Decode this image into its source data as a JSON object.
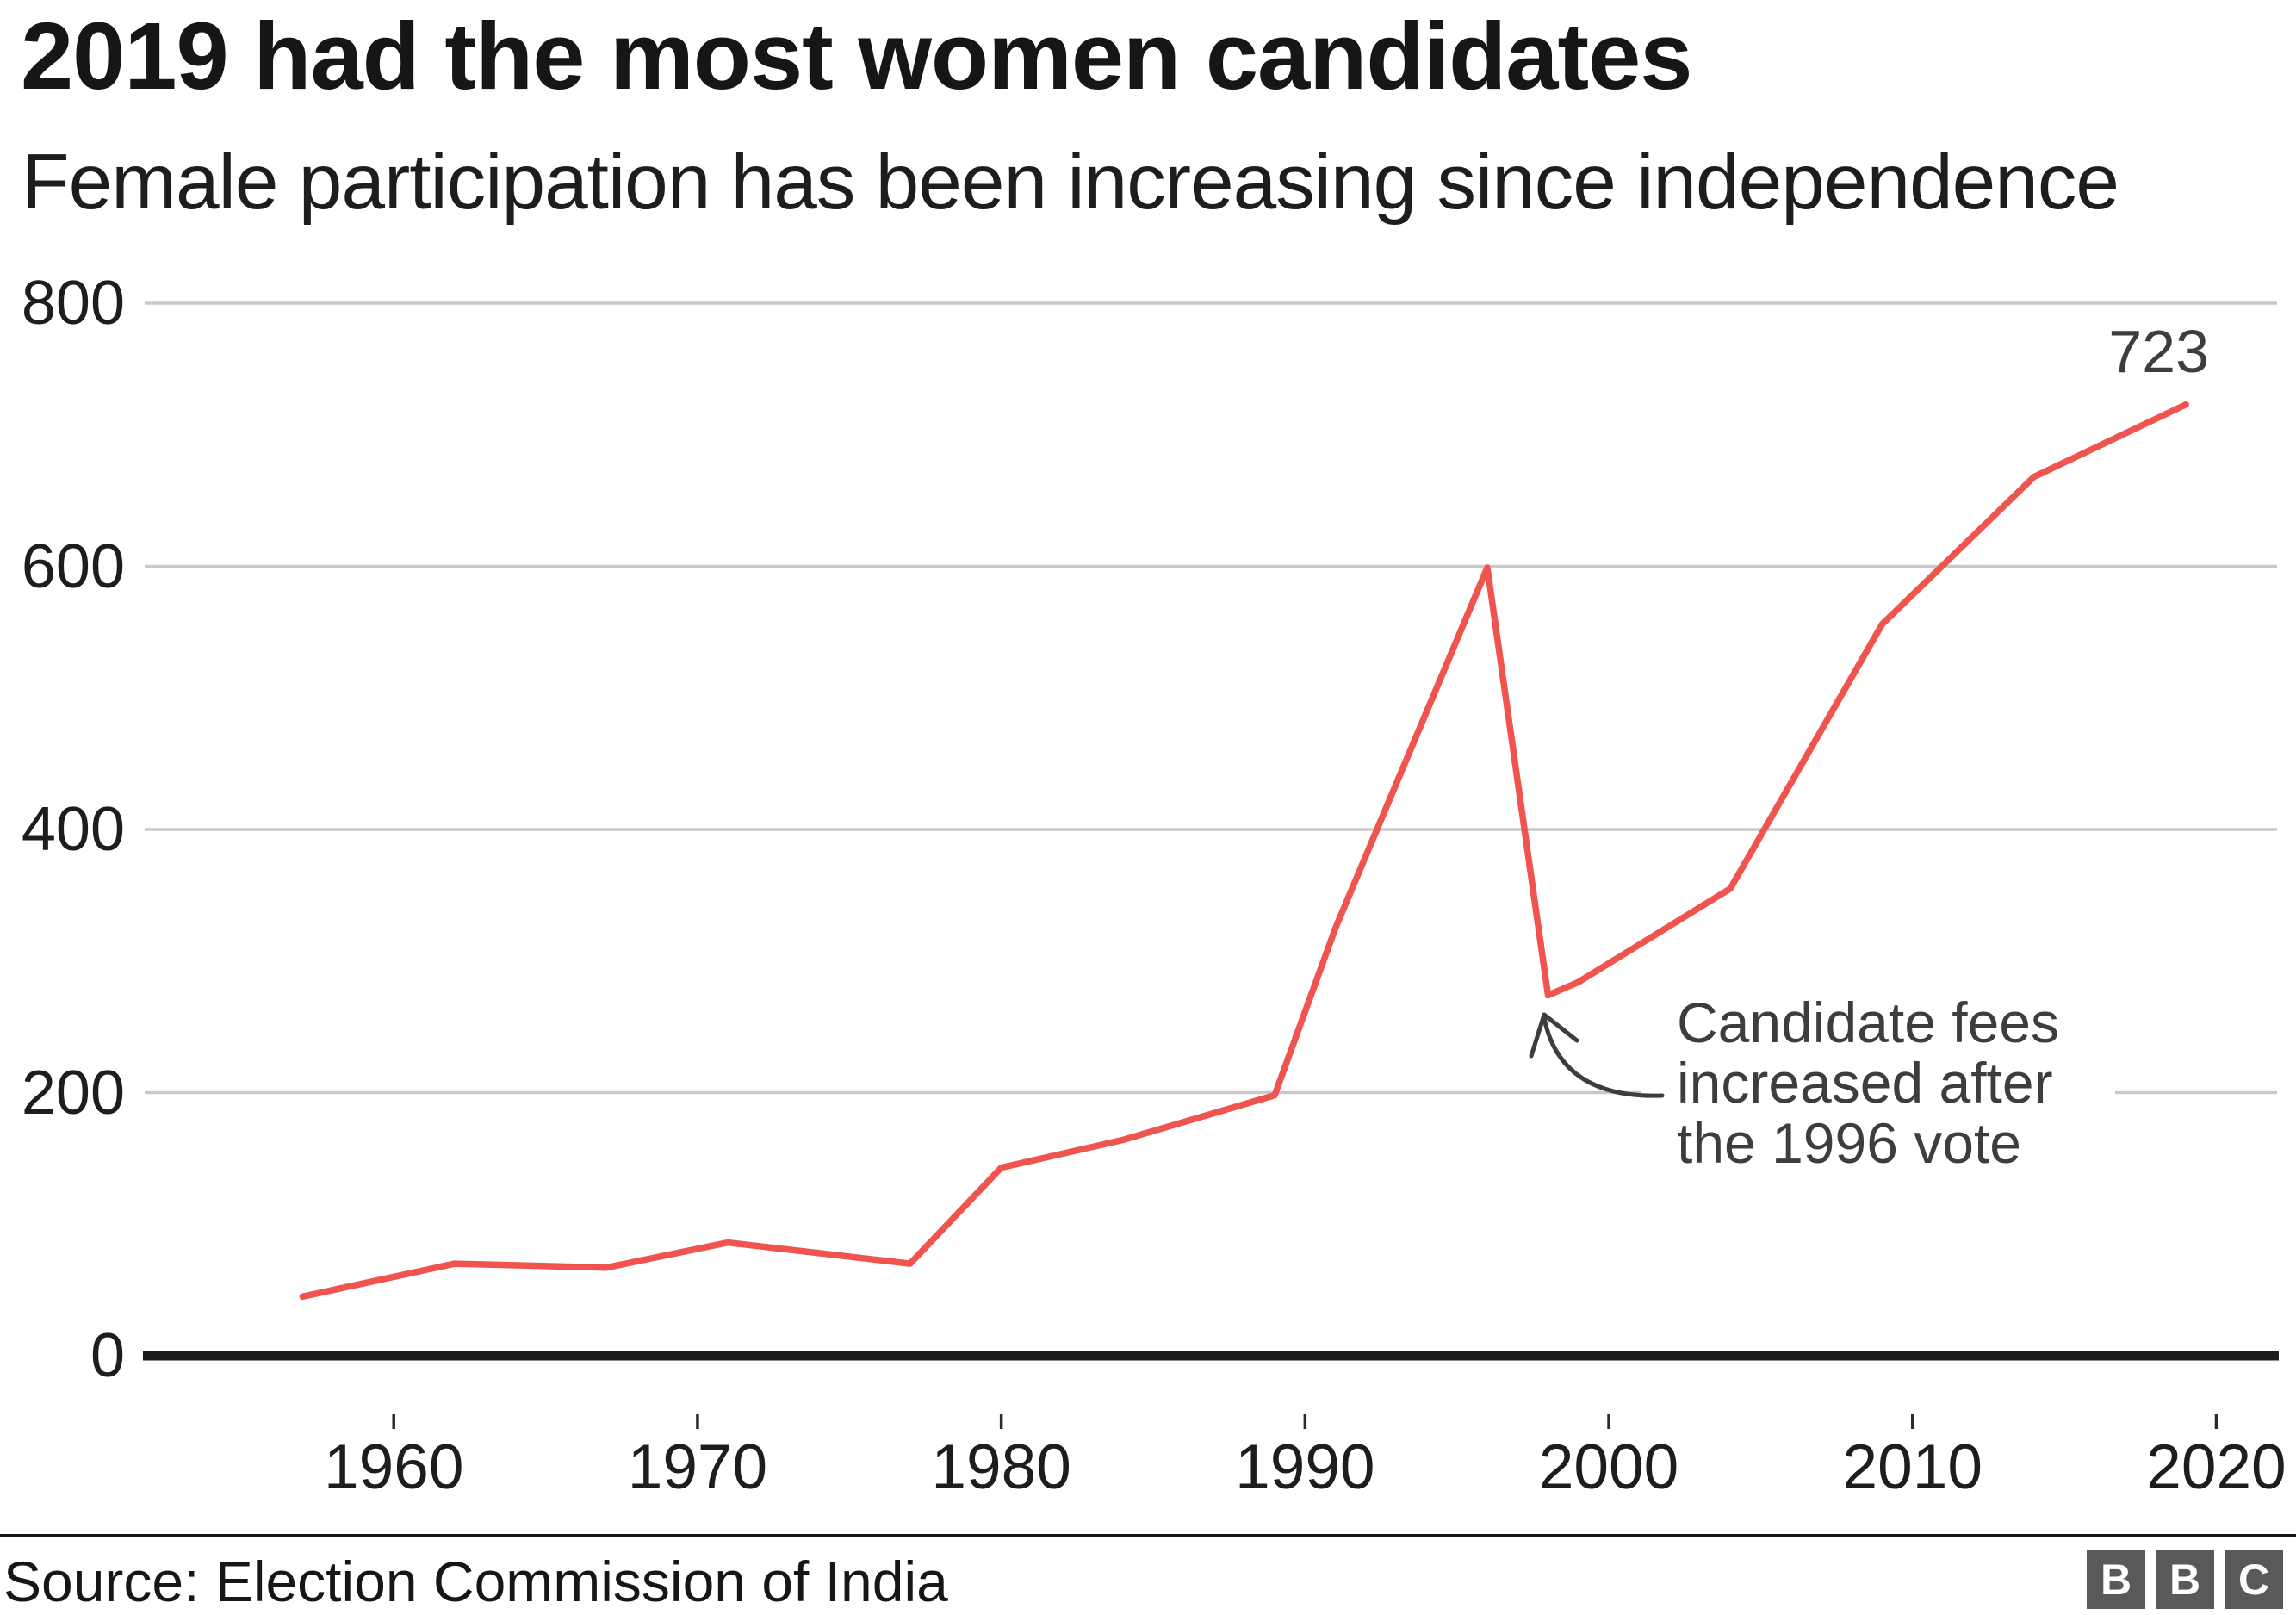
{
  "chart_data": {
    "type": "line",
    "title": "2019 had the most women candidates",
    "subtitle": "Female participation has been increasing since independence",
    "x": [
      1957,
      1962,
      1967,
      1971,
      1977,
      1980,
      1984,
      1989,
      1991,
      1996,
      1998,
      1999,
      2004,
      2009,
      2014,
      2019
    ],
    "series": [
      {
        "name": "Women candidates",
        "values": [
          45,
          70,
          67,
          86,
          70,
          143,
          164,
          198,
          325,
          599,
          274,
          284,
          355,
          556,
          668,
          723
        ]
      }
    ],
    "x_ticks": [
      1960,
      1970,
      1980,
      1990,
      2000,
      2010,
      2020
    ],
    "y_ticks": [
      0,
      200,
      400,
      600,
      800
    ],
    "xlim": [
      1951.8,
      2022
    ],
    "ylim": [
      0,
      800
    ],
    "grid": "horizontal-only",
    "legend": "none",
    "end_label": {
      "year": 2019,
      "value": 723
    },
    "annotation_points_to_year": 1998
  },
  "annotation": {
    "lines": [
      "Candidate fees",
      "increased after",
      "the 1996 vote"
    ]
  },
  "footer": {
    "source": "Source: Election Commission of India",
    "logo": [
      "B",
      "B",
      "C"
    ]
  },
  "colors": {
    "line": "#f0544e",
    "grid": "#c9c9c9",
    "axis": "#1c1c1c",
    "tick": "#2b2b2b",
    "annotation_gray": "#3d3d3d",
    "text_black": "#161616",
    "logo_gray": "#59595b",
    "background": "#ffffff"
  }
}
